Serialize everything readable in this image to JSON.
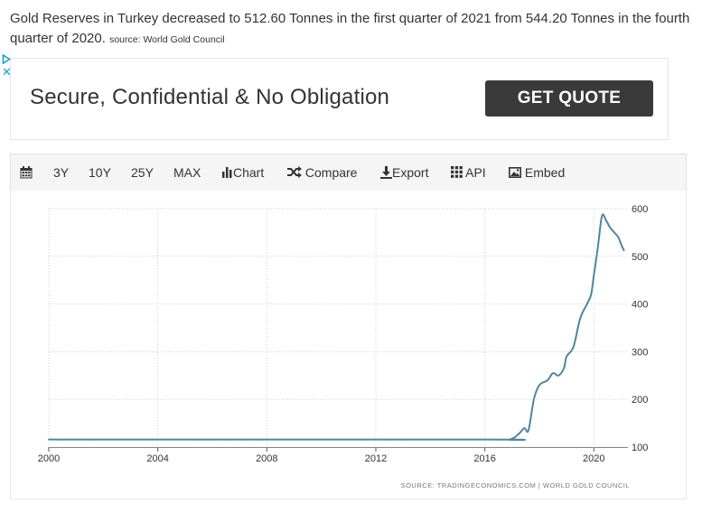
{
  "headline": {
    "text": "Gold Reserves in Turkey decreased to 512.60 Tonnes in the first quarter of 2021 from 544.20 Tonnes in the fourth quarter of 2020.",
    "source": "source: World Gold Council"
  },
  "ad": {
    "text": "Secure, Confidential & No Obligation",
    "button_label": "GET QUOTE",
    "ad_choices_icon": "ad-choices-play-icon",
    "close_icon": "ad-close-icon"
  },
  "toolbar": {
    "calendar_icon": "calendar-icon",
    "range_3y": "3Y",
    "range_10y": "10Y",
    "range_25y": "25Y",
    "range_max": "MAX",
    "chart_label": "Chart",
    "compare_label": "Compare",
    "export_label": "Export",
    "api_label": "API",
    "embed_label": "Embed"
  },
  "chart_data": {
    "type": "line",
    "title": "",
    "xlabel": "",
    "ylabel": "",
    "xlim": [
      2000,
      2021.25
    ],
    "ylim": [
      100,
      600
    ],
    "x_ticks": [
      "2000",
      "2004",
      "2008",
      "2012",
      "2016",
      "2020"
    ],
    "y_ticks": [
      "600",
      "500",
      "400",
      "300",
      "200",
      "100"
    ],
    "grid": true,
    "line_color": "#4e86a0",
    "series": [
      {
        "x": [
          2000.0,
          2016.0,
          2016.9,
          2017.25,
          2017.45,
          2017.6,
          2017.8,
          2018.0,
          2018.3,
          2018.5,
          2018.7,
          2018.9,
          2019.0,
          2019.25,
          2019.5,
          2019.75,
          2019.9,
          2020.0,
          2020.15,
          2020.3,
          2020.45,
          2020.6,
          2020.75,
          2020.9,
          2021.0,
          2021.1
        ],
        "y": [
          116,
          116,
          116,
          128,
          140,
          135,
          200,
          230,
          240,
          255,
          250,
          265,
          290,
          310,
          370,
          400,
          420,
          460,
          520,
          585,
          575,
          560,
          550,
          540,
          525,
          512.6
        ]
      }
    ],
    "source_note": "SOURCE: TRADINGECONOMICS.COM  |  WORLD GOLD COUNCIL"
  }
}
